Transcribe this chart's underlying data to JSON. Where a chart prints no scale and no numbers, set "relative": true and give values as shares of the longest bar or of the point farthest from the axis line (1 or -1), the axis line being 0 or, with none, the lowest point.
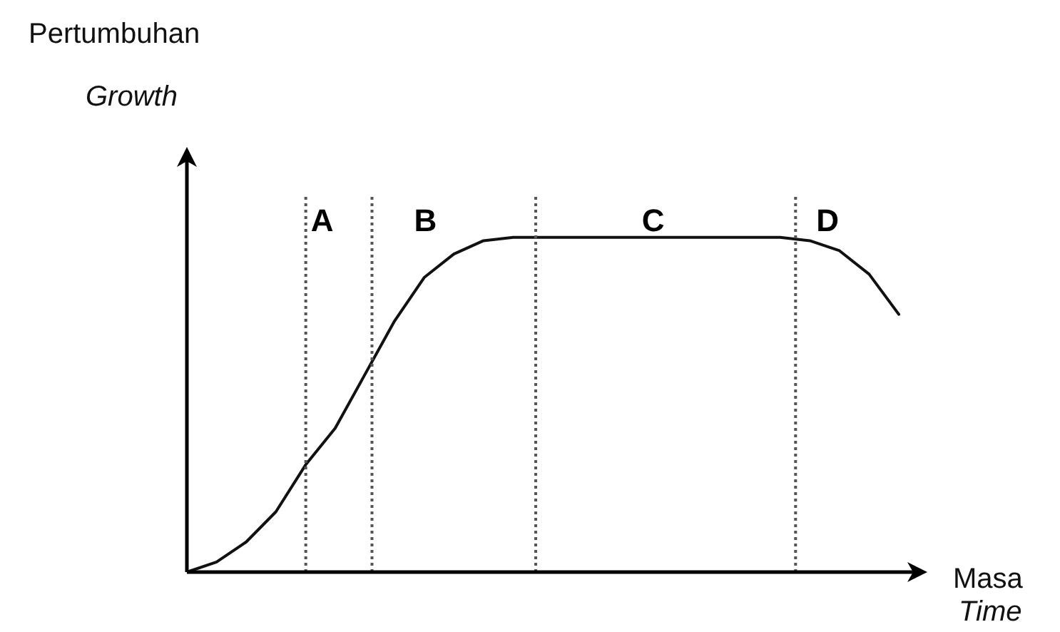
{
  "chart_data": {
    "type": "line",
    "relative": true,
    "ylabel": "Pertumbuhan\nGrowth",
    "xlabel": "Masa\nTime",
    "marker": "none",
    "line_style": "solid",
    "legend": false,
    "categories": [
      null,
      null,
      null,
      null,
      null,
      null,
      null,
      null,
      null,
      null,
      null,
      null,
      null,
      null,
      null,
      null,
      null,
      null,
      null,
      null,
      null,
      null,
      null,
      null,
      null
    ],
    "series": [
      {
        "color": "#111111",
        "values": [
          0,
          0.03,
          0.09,
          0.18,
          0.32,
          0.43,
          0.59,
          0.75,
          0.88,
          0.95,
          0.99,
          1,
          1,
          1,
          1,
          1,
          1,
          1,
          1,
          1,
          1,
          0.99,
          0.96,
          0.89,
          0.77
        ]
      }
    ],
    "annotations": [
      "A",
      "B",
      "C",
      "D"
    ]
  }
}
